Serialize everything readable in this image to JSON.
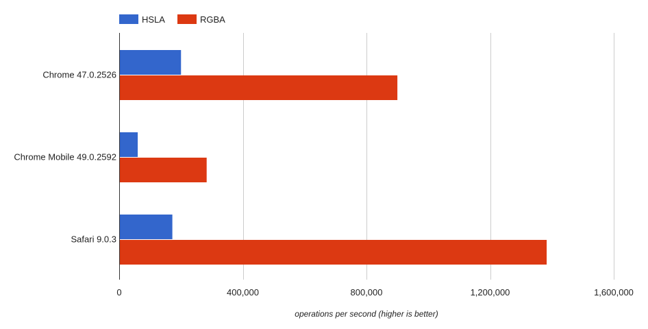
{
  "chart_data": {
    "type": "bar",
    "orientation": "horizontal",
    "categories": [
      "Chrome 47.0.2526",
      "Chrome Mobile 49.0.2592",
      "Safari 9.0.3"
    ],
    "series": [
      {
        "name": "HSLA",
        "color": "#3366cc",
        "values": [
          200000,
          60000,
          172000
        ]
      },
      {
        "name": "RGBA",
        "color": "#dc3912",
        "values": [
          900000,
          283000,
          1383000
        ]
      }
    ],
    "xlabel": "operations per second (higher is better)",
    "xlim": [
      0,
      1600000
    ],
    "xticks": [
      0,
      400000,
      800000,
      1200000,
      1600000
    ],
    "xtick_labels": [
      "0",
      "400,000",
      "800,000",
      "1,200,000",
      "1,600,000"
    ],
    "grid": true,
    "legend_position": "top-left"
  }
}
